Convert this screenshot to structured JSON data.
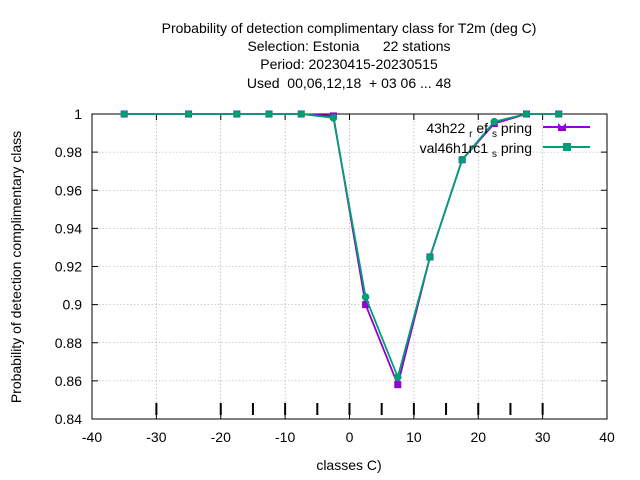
{
  "chart_data": {
    "type": "line",
    "title_lines": [
      "Probability of detection complimentary class  for T2m (deg C)",
      "Selection: Estonia      22 stations",
      "Period: 20230415-20230515",
      "Used  00,06,12,18  + 03 06 ... 48"
    ],
    "xlabel": "classes C)",
    "ylabel": "Probability of detection complimentary class",
    "xlim": [
      -40,
      40
    ],
    "ylim": [
      0.84,
      1.0
    ],
    "x_ticks": [
      -40,
      -30,
      -20,
      -10,
      0,
      10,
      20,
      30,
      40
    ],
    "x_tick_labels": [
      "-40",
      "-30",
      "-20",
      "-10",
      "0",
      "10",
      "20",
      "30",
      "40"
    ],
    "y_ticks": [
      0.84,
      0.86,
      0.88,
      0.9,
      0.92,
      0.94,
      0.96,
      0.98,
      1.0
    ],
    "y_tick_labels": [
      "0.84",
      "0.86",
      "0.88",
      "0.9",
      "0.92",
      "0.94",
      "0.96",
      "0.98",
      "1"
    ],
    "class_markers": [
      -30,
      -20,
      -15,
      -10,
      -5,
      0,
      5,
      10,
      15,
      20,
      25,
      30
    ],
    "grid": true,
    "legend_position": "top-right",
    "series": [
      {
        "name_main": "43h22",
        "name_sub": "r",
        "name_mid": "ef",
        "name_sub2": "s",
        "name_end": "pring",
        "color": "#9400d3",
        "x": [
          -35,
          -25,
          -17.5,
          -12.5,
          -7.5,
          -2.5,
          2.5,
          7.5,
          12.5,
          17.5,
          22.5,
          27.5,
          32.5
        ],
        "y": [
          1.0,
          1.0,
          1.0,
          1.0,
          1.0,
          0.999,
          0.9,
          0.858,
          0.925,
          0.976,
          0.995,
          1.0,
          1.0
        ]
      },
      {
        "name_main": "val46h1rc1",
        "name_sub": "",
        "name_mid": "",
        "name_sub2": "s",
        "name_end": "pring",
        "color": "#009e73",
        "x": [
          -35,
          -25,
          -17.5,
          -12.5,
          -7.5,
          -2.5,
          2.5,
          7.5,
          12.5,
          17.5,
          22.5,
          27.5,
          32.5
        ],
        "y": [
          1.0,
          1.0,
          1.0,
          1.0,
          1.0,
          0.998,
          0.904,
          0.862,
          0.925,
          0.976,
          0.996,
          1.0,
          1.0
        ]
      }
    ]
  }
}
